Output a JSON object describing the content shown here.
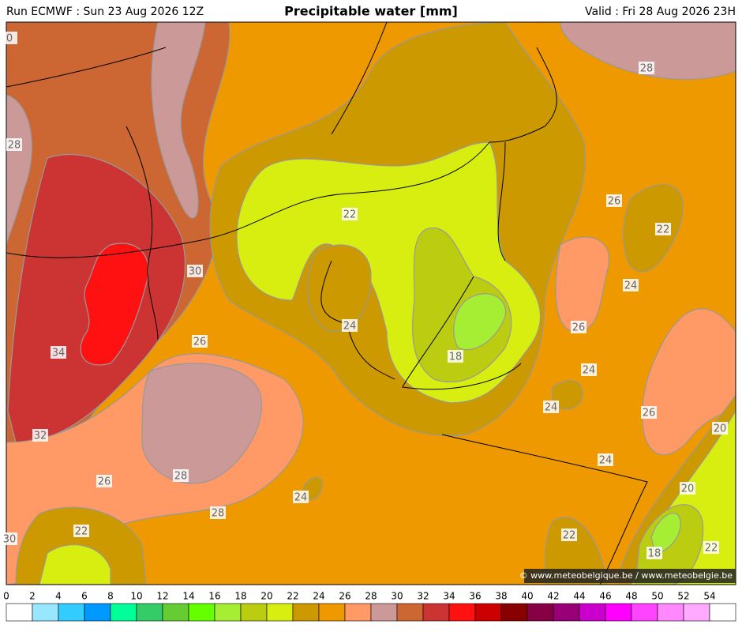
{
  "header": {
    "left": "Run ECMWF : Sun 23 Aug 2026 12Z",
    "title": "Precipitable water [mm]",
    "right": "Valid : Fri 28 Aug 2026 23H"
  },
  "map": {
    "contour_labels": [
      0,
      28,
      28,
      22,
      26,
      22,
      30,
      24,
      24,
      26,
      26,
      34,
      18,
      24,
      24,
      26,
      20,
      32,
      24,
      28,
      26,
      20,
      24,
      28,
      22,
      22,
      30,
      18,
      22
    ]
  },
  "colorbar": {
    "ticks": [
      0,
      2,
      4,
      6,
      8,
      10,
      12,
      14,
      16,
      18,
      20,
      22,
      24,
      26,
      28,
      30,
      32,
      34,
      36,
      38,
      40,
      42,
      44,
      46,
      48,
      50,
      52,
      54
    ],
    "colors": [
      "#ffffff",
      "#99e6ff",
      "#33ccff",
      "#0099ff",
      "#00ff99",
      "#33cc66",
      "#66cc33",
      "#66ff00",
      "#a6ee33",
      "#bbcc11",
      "#d8ee11",
      "#cc9900",
      "#ee9900",
      "#ff9966",
      "#cc9999",
      "#cc6633",
      "#cc3333",
      "#ff1111",
      "#cc0000",
      "#880000",
      "#880044",
      "#990077",
      "#cc00cc",
      "#ff00ff",
      "#ff44ff",
      "#ff88ff",
      "#ffaaff",
      "#ffffff"
    ]
  },
  "credit": "© www.meteobelgique.be / www.meteobelgie.be"
}
